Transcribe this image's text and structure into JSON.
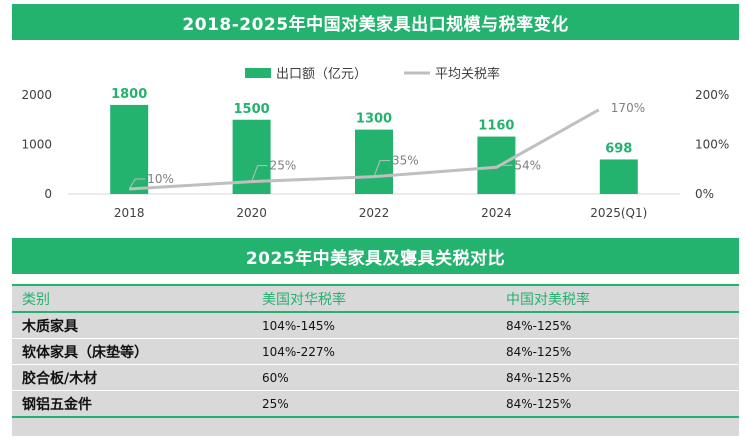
{
  "header": {
    "chart_title": "2018-2025年中国对美家具出口规模与税率变化",
    "table_title": "2025年中美家具及寝具关税对比"
  },
  "colors": {
    "accent": "#24b26f",
    "bar": "#24b26f",
    "line": "#bfbfbf",
    "table_bg": "#d9d9d9"
  },
  "chart_data": {
    "type": "bar",
    "categories": [
      "2018",
      "2020",
      "2022",
      "2024",
      "2025(Q1)"
    ],
    "series": [
      {
        "name": "出口额（亿元）",
        "type": "bar",
        "axis": "left",
        "values": [
          1800,
          1500,
          1300,
          1160,
          698
        ],
        "labels": [
          "1800",
          "1500",
          "1300",
          "1160",
          "698"
        ]
      },
      {
        "name": "平均关税率",
        "type": "line",
        "axis": "right",
        "values": [
          10,
          25,
          35,
          54,
          170
        ],
        "labels": [
          "10%",
          "25%",
          "35%",
          "54%",
          "170%"
        ]
      }
    ],
    "y_left": {
      "min": 0,
      "max": 2000,
      "ticks": [
        "0",
        "1000",
        "2000"
      ],
      "tick_values": [
        0,
        1000,
        2000
      ]
    },
    "y_right": {
      "min": 0,
      "max": 200,
      "ticks": [
        "0%",
        "100%",
        "200%"
      ],
      "tick_values": [
        0,
        100,
        200
      ]
    },
    "grid": false,
    "legend_position": "top"
  },
  "table": {
    "columns": [
      "类别",
      "美国对华税率",
      "中国对美税率"
    ],
    "rows": [
      [
        "木质家具",
        "104%-145%",
        "84%-125%"
      ],
      [
        "软体家具（床垫等）",
        "104%-227%",
        "84%-125%"
      ],
      [
        "胶合板/木材",
        "60%",
        "84%-125%"
      ],
      [
        "钢铝五金件",
        "25%",
        "84%-125%"
      ]
    ]
  }
}
